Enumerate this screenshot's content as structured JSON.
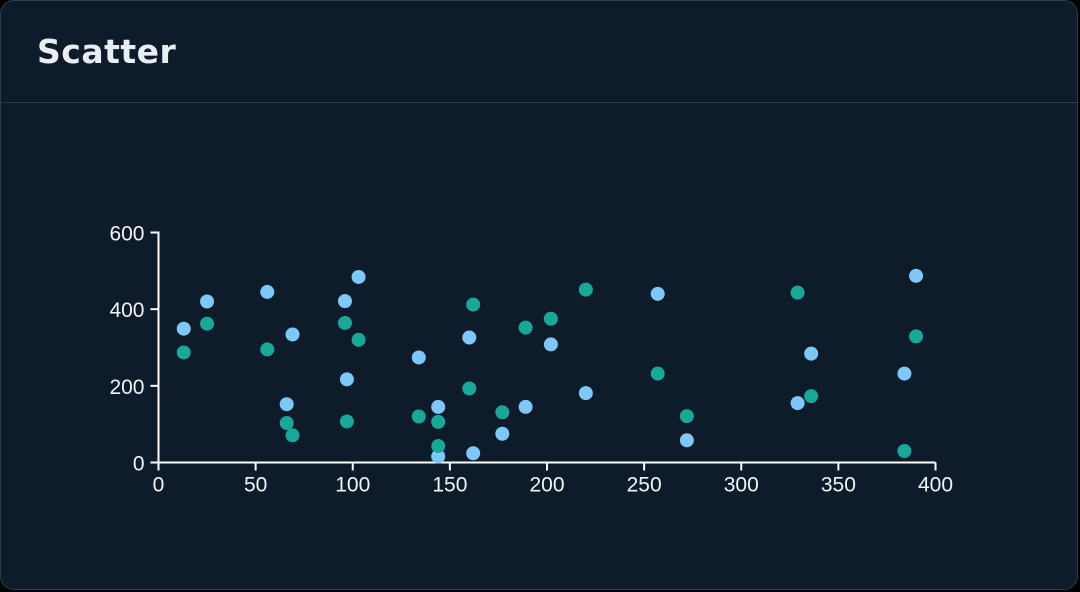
{
  "chart_data": {
    "type": "scatter",
    "title": "Scatter",
    "xlabel": "",
    "ylabel": "",
    "xlim": [
      0,
      400
    ],
    "ylim": [
      0,
      600
    ],
    "x_ticks": [
      0,
      50,
      100,
      150,
      200,
      250,
      300,
      350,
      400
    ],
    "y_ticks": [
      0,
      200,
      400,
      600
    ],
    "grid": false,
    "legend_position": "none",
    "axis_color": "#fdfdfd",
    "tick_label_color": "#f2f4f6",
    "series": [
      {
        "name": "light-blue",
        "color": "#7ec8f8",
        "points": [
          [
            13,
            349
          ],
          [
            25,
            420
          ],
          [
            56,
            445
          ],
          [
            66,
            152
          ],
          [
            69,
            334
          ],
          [
            96,
            421
          ],
          [
            97,
            217
          ],
          [
            103,
            484
          ],
          [
            134,
            274
          ],
          [
            144,
            145
          ],
          [
            144,
            16
          ],
          [
            160,
            326
          ],
          [
            162,
            24
          ],
          [
            177,
            75
          ],
          [
            189,
            145
          ],
          [
            202,
            308
          ],
          [
            220,
            181
          ],
          [
            257,
            440
          ],
          [
            272,
            58
          ],
          [
            329,
            155
          ],
          [
            336,
            284
          ],
          [
            384,
            232
          ],
          [
            390,
            487
          ]
        ]
      },
      {
        "name": "teal",
        "color": "#17a897",
        "points": [
          [
            13,
            287
          ],
          [
            25,
            362
          ],
          [
            56,
            295
          ],
          [
            66,
            103
          ],
          [
            69,
            71
          ],
          [
            96,
            364
          ],
          [
            97,
            107
          ],
          [
            103,
            320
          ],
          [
            134,
            120
          ],
          [
            144,
            106
          ],
          [
            144,
            43
          ],
          [
            160,
            193
          ],
          [
            162,
            412
          ],
          [
            177,
            131
          ],
          [
            189,
            352
          ],
          [
            202,
            375
          ],
          [
            220,
            451
          ],
          [
            257,
            232
          ],
          [
            272,
            121
          ],
          [
            329,
            443
          ],
          [
            336,
            173
          ],
          [
            384,
            30
          ],
          [
            390,
            329
          ]
        ]
      }
    ]
  },
  "colors": {
    "page_bg": "#000000",
    "card_bg": "#0d1b2a",
    "card_border": "#2e3d52",
    "header_divider": "#2c3a4e",
    "title_text": "#e9eef4"
  }
}
